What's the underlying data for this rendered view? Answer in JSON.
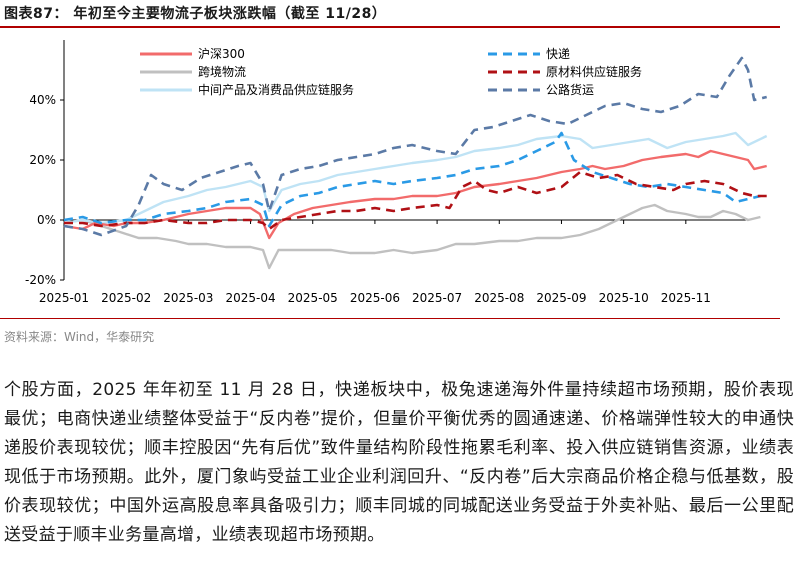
{
  "figure": {
    "title": "图表87：  年初至今主要物流子板块涨跌幅（截至 11/28）",
    "source": "资料来源：Wind，华泰研究",
    "body_text": "个股方面，2025 年年初至 11 月 28 日，快递板块中，极兔速递海外件量持续超市场预期，股价表现最优；电商快递业绩整体受益于“反内卷”提价，但量价平衡优秀的圆通速递、价格端弹性较大的申通快递股价表现较优；顺丰控股因“先有后优”致件量结构阶段性拖累毛利率、投入供应链销售资源，业绩表现低于市场预期。此外，厦门象屿受益工业企业利润回升、“反内卷”后大宗商品价格企稳与低基数，股价表现较优；中国外运高股息率具备吸引力；顺丰同城的同城配送业务受益于外卖补贴、最后一公里配送受益于顺丰业务量高增，业绩表现超市场预期。"
  },
  "chart_data": {
    "type": "line",
    "x_tick_labels": [
      "2025-01",
      "2025-02",
      "2025-03",
      "2025-04",
      "2025-05",
      "2025-06",
      "2025-07",
      "2025-08",
      "2025-09",
      "2025-10",
      "2025-11"
    ],
    "y_tick_labels": [
      "-20%",
      "0%",
      "20%",
      "40%"
    ],
    "ylim": [
      -20,
      60
    ],
    "y_ticks": [
      -20,
      0,
      20,
      40
    ],
    "grid": false,
    "legend_position": "top",
    "series": [
      {
        "name": "沪深300",
        "color": "#f26b6b",
        "style": "solid",
        "points": [
          [
            0,
            -2
          ],
          [
            0.3,
            -3
          ],
          [
            0.5,
            -1
          ],
          [
            0.8,
            -2
          ],
          [
            1.0,
            -1
          ],
          [
            1.3,
            -1
          ],
          [
            1.6,
            0
          ],
          [
            2.0,
            2
          ],
          [
            2.3,
            3
          ],
          [
            2.6,
            4
          ],
          [
            3.0,
            4
          ],
          [
            3.15,
            2
          ],
          [
            3.3,
            -6
          ],
          [
            3.45,
            -1
          ],
          [
            3.7,
            2
          ],
          [
            4.0,
            4
          ],
          [
            4.3,
            5
          ],
          [
            4.6,
            6
          ],
          [
            5.0,
            7
          ],
          [
            5.3,
            7
          ],
          [
            5.6,
            8
          ],
          [
            6.0,
            8
          ],
          [
            6.3,
            9
          ],
          [
            6.6,
            11
          ],
          [
            7.0,
            12
          ],
          [
            7.3,
            13
          ],
          [
            7.6,
            14
          ],
          [
            8.0,
            16
          ],
          [
            8.3,
            17
          ],
          [
            8.5,
            18
          ],
          [
            8.7,
            17
          ],
          [
            9.0,
            18
          ],
          [
            9.3,
            20
          ],
          [
            9.6,
            21
          ],
          [
            10.0,
            22
          ],
          [
            10.2,
            21
          ],
          [
            10.4,
            23
          ],
          [
            10.6,
            22
          ],
          [
            10.8,
            21
          ],
          [
            11.0,
            20
          ],
          [
            11.1,
            17
          ],
          [
            11.3,
            18
          ]
        ]
      },
      {
        "name": "跨境物流",
        "color": "#c0c0c0",
        "style": "solid",
        "points": [
          [
            0,
            -1
          ],
          [
            0.3,
            0
          ],
          [
            0.6,
            -2
          ],
          [
            0.9,
            -4
          ],
          [
            1.2,
            -6
          ],
          [
            1.5,
            -6
          ],
          [
            1.8,
            -7
          ],
          [
            2.0,
            -8
          ],
          [
            2.3,
            -8
          ],
          [
            2.6,
            -9
          ],
          [
            3.0,
            -9
          ],
          [
            3.2,
            -10
          ],
          [
            3.3,
            -16
          ],
          [
            3.45,
            -10
          ],
          [
            3.7,
            -10
          ],
          [
            4.0,
            -10
          ],
          [
            4.3,
            -10
          ],
          [
            4.6,
            -11
          ],
          [
            5.0,
            -11
          ],
          [
            5.3,
            -10
          ],
          [
            5.6,
            -11
          ],
          [
            6.0,
            -10
          ],
          [
            6.3,
            -8
          ],
          [
            6.6,
            -8
          ],
          [
            7.0,
            -7
          ],
          [
            7.3,
            -7
          ],
          [
            7.6,
            -6
          ],
          [
            8.0,
            -6
          ],
          [
            8.3,
            -5
          ],
          [
            8.6,
            -3
          ],
          [
            8.9,
            0
          ],
          [
            9.1,
            2
          ],
          [
            9.3,
            4
          ],
          [
            9.5,
            5
          ],
          [
            9.7,
            3
          ],
          [
            10.0,
            2
          ],
          [
            10.2,
            1
          ],
          [
            10.4,
            1
          ],
          [
            10.6,
            3
          ],
          [
            10.8,
            2
          ],
          [
            11.0,
            0
          ],
          [
            11.2,
            1
          ]
        ]
      },
      {
        "name": "中间产品及消费品供应链服务",
        "color": "#bfe3f5",
        "style": "solid",
        "points": [
          [
            0,
            -1
          ],
          [
            0.3,
            0
          ],
          [
            0.6,
            -1
          ],
          [
            1.0,
            0
          ],
          [
            1.3,
            3
          ],
          [
            1.6,
            6
          ],
          [
            2.0,
            8
          ],
          [
            2.3,
            10
          ],
          [
            2.6,
            11
          ],
          [
            3.0,
            13
          ],
          [
            3.2,
            11
          ],
          [
            3.3,
            3
          ],
          [
            3.5,
            10
          ],
          [
            3.8,
            12
          ],
          [
            4.1,
            13
          ],
          [
            4.4,
            15
          ],
          [
            4.7,
            16
          ],
          [
            5.0,
            17
          ],
          [
            5.3,
            18
          ],
          [
            5.6,
            19
          ],
          [
            6.0,
            20
          ],
          [
            6.3,
            21
          ],
          [
            6.6,
            23
          ],
          [
            7.0,
            24
          ],
          [
            7.3,
            25
          ],
          [
            7.6,
            27
          ],
          [
            8.0,
            28
          ],
          [
            8.3,
            27
          ],
          [
            8.5,
            24
          ],
          [
            8.8,
            25
          ],
          [
            9.1,
            26
          ],
          [
            9.4,
            27
          ],
          [
            9.7,
            24
          ],
          [
            10.0,
            26
          ],
          [
            10.3,
            27
          ],
          [
            10.6,
            28
          ],
          [
            10.8,
            29
          ],
          [
            11.0,
            25
          ],
          [
            11.3,
            28
          ]
        ]
      },
      {
        "name": "快递",
        "color": "#2a9ae6",
        "style": "dash",
        "points": [
          [
            0,
            0
          ],
          [
            0.3,
            1
          ],
          [
            0.6,
            -1
          ],
          [
            1.0,
            0
          ],
          [
            1.3,
            0
          ],
          [
            1.6,
            2
          ],
          [
            2.0,
            3
          ],
          [
            2.3,
            4
          ],
          [
            2.6,
            6
          ],
          [
            3.0,
            7
          ],
          [
            3.2,
            5
          ],
          [
            3.3,
            -2
          ],
          [
            3.5,
            5
          ],
          [
            3.8,
            8
          ],
          [
            4.1,
            9
          ],
          [
            4.4,
            11
          ],
          [
            4.7,
            12
          ],
          [
            5.0,
            13
          ],
          [
            5.3,
            12
          ],
          [
            5.6,
            13
          ],
          [
            6.0,
            14
          ],
          [
            6.3,
            15
          ],
          [
            6.6,
            17
          ],
          [
            7.0,
            18
          ],
          [
            7.3,
            20
          ],
          [
            7.6,
            23
          ],
          [
            7.9,
            26
          ],
          [
            8.0,
            29
          ],
          [
            8.2,
            20
          ],
          [
            8.5,
            16
          ],
          [
            8.8,
            14
          ],
          [
            9.1,
            12
          ],
          [
            9.4,
            11
          ],
          [
            9.7,
            12
          ],
          [
            10.0,
            11
          ],
          [
            10.3,
            10
          ],
          [
            10.6,
            9
          ],
          [
            10.8,
            6
          ],
          [
            11.0,
            7
          ],
          [
            11.2,
            8
          ]
        ]
      },
      {
        "name": "原材料供应链服务",
        "color": "#b01015",
        "style": "dash",
        "points": [
          [
            0,
            -1
          ],
          [
            0.3,
            -1
          ],
          [
            0.6,
            -2
          ],
          [
            1.0,
            -1
          ],
          [
            1.3,
            -1
          ],
          [
            1.6,
            0
          ],
          [
            2.0,
            -1
          ],
          [
            2.3,
            -1
          ],
          [
            2.6,
            0
          ],
          [
            3.0,
            0
          ],
          [
            3.2,
            -1
          ],
          [
            3.3,
            -3
          ],
          [
            3.5,
            0
          ],
          [
            3.8,
            1
          ],
          [
            4.1,
            2
          ],
          [
            4.4,
            3
          ],
          [
            4.7,
            3
          ],
          [
            5.0,
            4
          ],
          [
            5.3,
            3
          ],
          [
            5.6,
            4
          ],
          [
            6.0,
            5
          ],
          [
            6.2,
            4
          ],
          [
            6.4,
            11
          ],
          [
            6.6,
            13
          ],
          [
            6.8,
            10
          ],
          [
            7.0,
            9
          ],
          [
            7.3,
            11
          ],
          [
            7.6,
            9
          ],
          [
            8.0,
            11
          ],
          [
            8.3,
            16
          ],
          [
            8.6,
            14
          ],
          [
            8.9,
            15
          ],
          [
            9.2,
            12
          ],
          [
            9.5,
            11
          ],
          [
            9.8,
            10
          ],
          [
            10.0,
            12
          ],
          [
            10.3,
            13
          ],
          [
            10.6,
            12
          ],
          [
            10.9,
            9
          ],
          [
            11.1,
            8
          ],
          [
            11.3,
            8
          ]
        ]
      },
      {
        "name": "公路货运",
        "color": "#5b7aa6",
        "style": "dash",
        "points": [
          [
            0,
            -2
          ],
          [
            0.3,
            -3
          ],
          [
            0.6,
            -5
          ],
          [
            1.0,
            -2
          ],
          [
            1.2,
            5
          ],
          [
            1.4,
            15
          ],
          [
            1.6,
            12
          ],
          [
            1.9,
            10
          ],
          [
            2.2,
            14
          ],
          [
            2.5,
            16
          ],
          [
            2.8,
            18
          ],
          [
            3.0,
            19
          ],
          [
            3.2,
            12
          ],
          [
            3.3,
            3
          ],
          [
            3.5,
            15
          ],
          [
            3.8,
            17
          ],
          [
            4.1,
            18
          ],
          [
            4.4,
            20
          ],
          [
            4.7,
            21
          ],
          [
            5.0,
            22
          ],
          [
            5.3,
            24
          ],
          [
            5.6,
            25
          ],
          [
            6.0,
            23
          ],
          [
            6.3,
            22
          ],
          [
            6.6,
            30
          ],
          [
            6.9,
            31
          ],
          [
            7.2,
            33
          ],
          [
            7.5,
            35
          ],
          [
            7.8,
            33
          ],
          [
            8.1,
            32
          ],
          [
            8.4,
            35
          ],
          [
            8.7,
            38
          ],
          [
            9.0,
            39
          ],
          [
            9.3,
            37
          ],
          [
            9.6,
            36
          ],
          [
            9.9,
            38
          ],
          [
            10.2,
            42
          ],
          [
            10.5,
            41
          ],
          [
            10.7,
            48
          ],
          [
            10.9,
            54
          ],
          [
            11.0,
            50
          ],
          [
            11.1,
            40
          ],
          [
            11.3,
            41
          ]
        ]
      }
    ]
  }
}
